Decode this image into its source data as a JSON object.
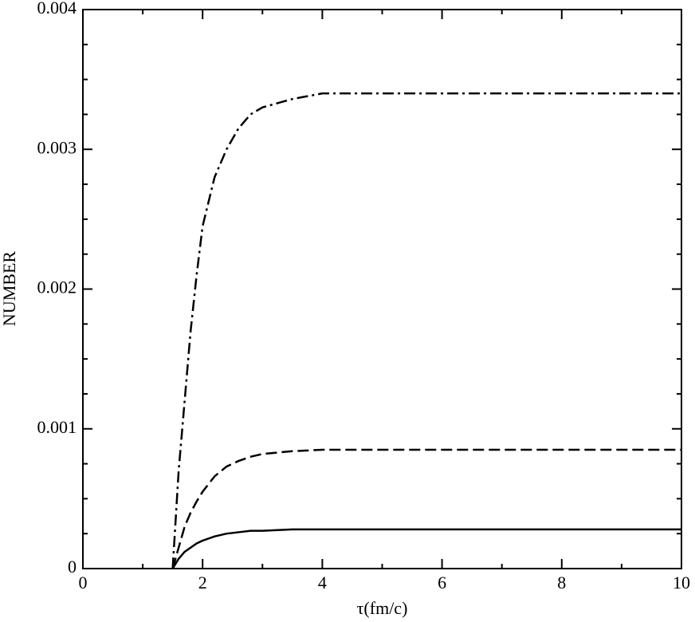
{
  "chart_data": {
    "type": "line",
    "xlabel": "τ(fm/c)",
    "ylabel": "NUMBER",
    "x": [
      1.5,
      1.6,
      1.7,
      1.8,
      1.9,
      2.0,
      2.2,
      2.4,
      2.6,
      2.8,
      3.0,
      3.5,
      4,
      5,
      6,
      7,
      8,
      9,
      10
    ],
    "series": [
      {
        "color": "#000000",
        "dash": "solid",
        "values": [
          0,
          7e-05,
          0.00012,
          0.00015,
          0.00018,
          0.0002,
          0.00023,
          0.00025,
          0.00026,
          0.00027,
          0.00027,
          0.00028,
          0.00028,
          0.00028,
          0.00028,
          0.00028,
          0.00028,
          0.00028,
          0.00028
        ]
      },
      {
        "color": "#000000",
        "dash": "dashed",
        "values": [
          0,
          0.00015,
          0.0003,
          0.0004,
          0.00048,
          0.00055,
          0.00066,
          0.00073,
          0.00077,
          0.0008,
          0.00082,
          0.00084,
          0.00085,
          0.00085,
          0.00085,
          0.00085,
          0.00085,
          0.00085,
          0.00085
        ]
      },
      {
        "color": "#000000",
        "dash": "dashdot",
        "values": [
          0,
          0.0007,
          0.0012,
          0.0017,
          0.0021,
          0.00245,
          0.0028,
          0.003,
          0.00315,
          0.00325,
          0.0033,
          0.00336,
          0.0034,
          0.0034,
          0.0034,
          0.0034,
          0.0034,
          0.0034,
          0.0034
        ]
      }
    ],
    "xlim": [
      0,
      10
    ],
    "xticks": [
      0,
      2,
      4,
      6,
      8,
      10
    ],
    "ylim": [
      0,
      0.004
    ],
    "yticks": [
      0,
      0.001,
      0.002,
      0.003,
      0.004
    ],
    "grid": false
  }
}
